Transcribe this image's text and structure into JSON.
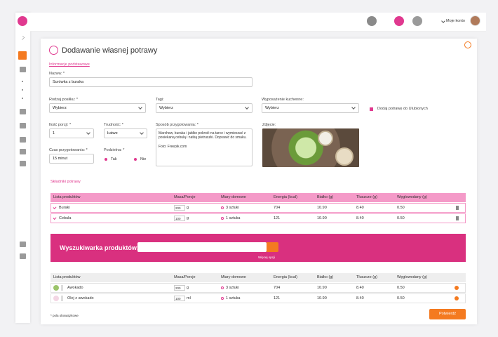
{
  "header": {
    "account": "Moje konto"
  },
  "form": {
    "title": "Dodawanie własnej potrawy",
    "section_basic": "Informacje podstawowe",
    "name": {
      "label": "Nazwa: *",
      "value": "Surówka z buraka"
    },
    "meal_type": {
      "label": "Rodzaj posiłku: *",
      "value": "Wybierz"
    },
    "tags": {
      "label": "Tagi:",
      "value": "Wybierz"
    },
    "equipment": {
      "label": "Wyposażenie kuchenne:",
      "value": "Wybierz"
    },
    "favorite": "Dodaj potrawę do Ulubionych",
    "portions": {
      "label": "Ilość porcji: *",
      "value": "1"
    },
    "difficulty": {
      "label": "Trudność: *",
      "value": "Łatwe"
    },
    "preparation": {
      "label": "Sposób przygotowania: *",
      "value": "Marchew, buraka i jabłko pokroić na tarce i wymieszać z posiekaną cebulą i natką pietruszki. Doprawić do smaku.",
      "credit": "Foto: Freepik.com"
    },
    "photo": {
      "label": "Zdjęcie:"
    },
    "time": {
      "label": "Czas przygotowania: *",
      "value": "15 minut"
    },
    "divisible": {
      "label": "Podzielna: *",
      "yes": "Tak",
      "no": "Nie"
    }
  },
  "ingredients": {
    "title": "Składniki potrawy",
    "columns": [
      "Lista produktów",
      "Masa/Porcje",
      "Miary domowe",
      "Energia (kcal)",
      "Białko (g)",
      "Tłuszcze (g)",
      "Węglowodany (g)"
    ],
    "rows": [
      {
        "name": "Buraki",
        "mass": 200,
        "unit": "g",
        "measure": "3 sztuki",
        "energy": 704,
        "protein": "10.90",
        "fat": "8.40",
        "carbs": "0.50"
      },
      {
        "name": "Cebula",
        "mass": 100,
        "unit": "g",
        "measure": "1 sztuka",
        "energy": 121,
        "protein": "10.90",
        "fat": "8.40",
        "carbs": "0.50"
      }
    ]
  },
  "search": {
    "label": "Wyszukiwarka produktów:",
    "more": "Więcej opcji"
  },
  "results": {
    "columns": [
      "Lista produktów",
      "Masa/Porcje",
      "Miary domowe",
      "Energia (kcal)",
      "Białko (g)",
      "Tłuszcze (g)",
      "Węglowodany (g)"
    ],
    "rows": [
      {
        "name": "Awokado",
        "mass": 200,
        "unit": "g",
        "measure": "3 sztuki",
        "energy": 704,
        "protein": "10.90",
        "fat": "8.40",
        "carbs": "0.50"
      },
      {
        "name": "Olej z awokado",
        "mass": 100,
        "unit": "ml",
        "measure": "1 sztuka",
        "energy": 121,
        "protein": "10.90",
        "fat": "8.40",
        "carbs": "0.50"
      }
    ]
  },
  "footer": {
    "note": "* pola obowiązkowe",
    "confirm": "Potwierdź"
  }
}
